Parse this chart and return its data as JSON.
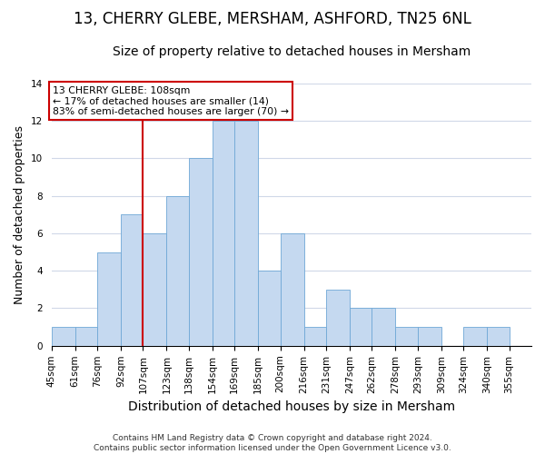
{
  "title": "13, CHERRY GLEBE, MERSHAM, ASHFORD, TN25 6NL",
  "subtitle": "Size of property relative to detached houses in Mersham",
  "xlabel": "Distribution of detached houses by size in Mersham",
  "ylabel": "Number of detached properties",
  "bar_labels": [
    "45sqm",
    "61sqm",
    "76sqm",
    "92sqm",
    "107sqm",
    "123sqm",
    "138sqm",
    "154sqm",
    "169sqm",
    "185sqm",
    "200sqm",
    "216sqm",
    "231sqm",
    "247sqm",
    "262sqm",
    "278sqm",
    "293sqm",
    "309sqm",
    "324sqm",
    "340sqm",
    "355sqm"
  ],
  "bar_values": [
    1,
    1,
    5,
    7,
    6,
    8,
    10,
    12,
    12,
    4,
    6,
    1,
    3,
    2,
    2,
    1,
    1,
    0,
    1,
    1,
    0
  ],
  "bar_color": "#c5d9f0",
  "bar_edgecolor": "#6fa8d6",
  "vline_x": 107,
  "vline_color": "#cc0000",
  "annotation_text": "13 CHERRY GLEBE: 108sqm\n← 17% of detached houses are smaller (14)\n83% of semi-detached houses are larger (70) →",
  "annotation_box_facecolor": "#ffffff",
  "annotation_box_edgecolor": "#cc0000",
  "ylim": [
    0,
    14
  ],
  "yticks": [
    0,
    2,
    4,
    6,
    8,
    10,
    12,
    14
  ],
  "footnote": "Contains HM Land Registry data © Crown copyright and database right 2024.\nContains public sector information licensed under the Open Government Licence v3.0.",
  "bg_color": "#ffffff",
  "grid_color": "#d0d8e8",
  "title_fontsize": 12,
  "subtitle_fontsize": 10,
  "xlabel_fontsize": 10,
  "ylabel_fontsize": 9,
  "tick_fontsize": 7.5,
  "footnote_fontsize": 6.5
}
